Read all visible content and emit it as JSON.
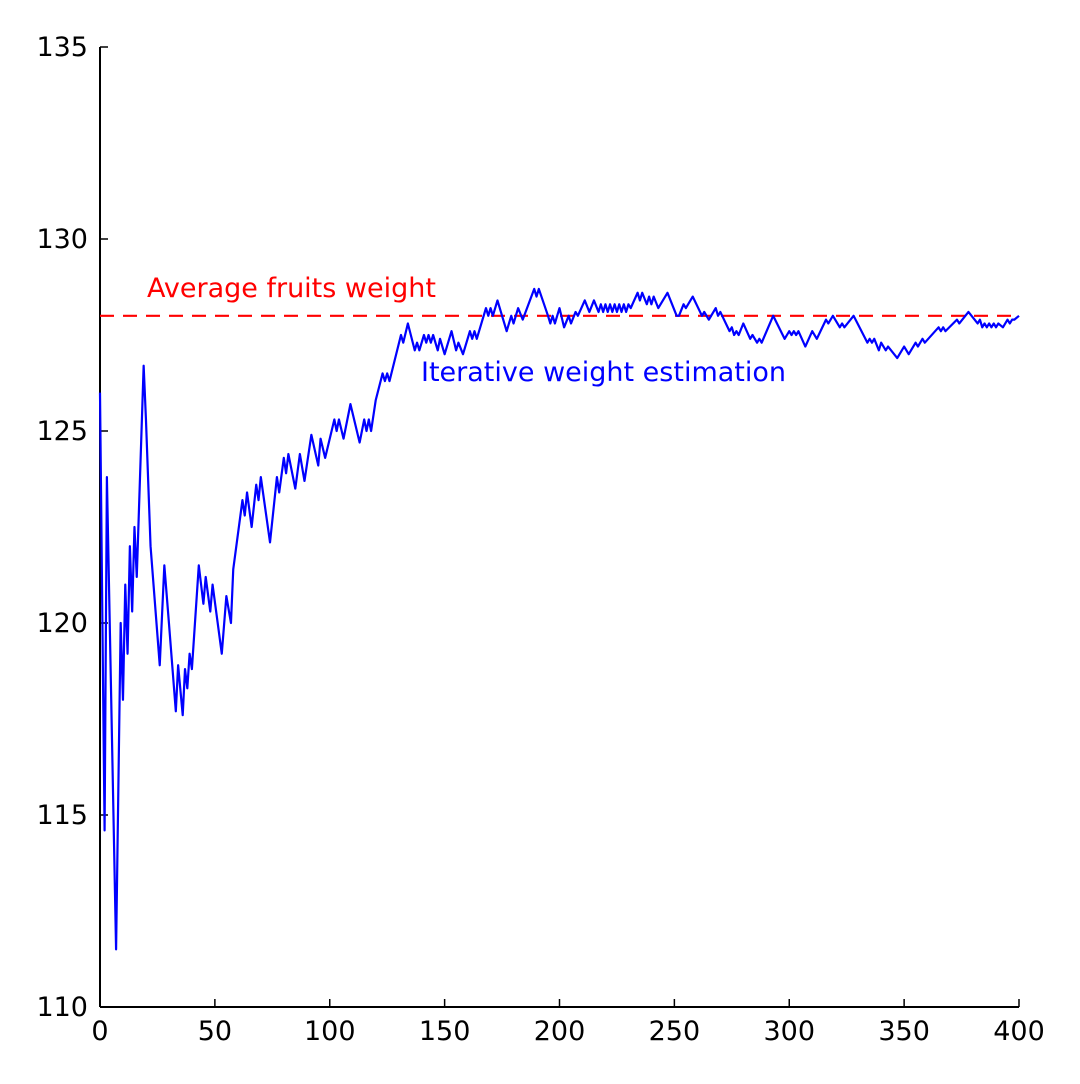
{
  "chart_data": {
    "type": "line",
    "x": [
      0,
      2,
      3,
      7,
      9,
      10,
      11,
      12,
      13,
      14,
      15,
      16,
      19,
      20,
      22,
      26,
      28,
      30,
      33,
      34,
      36,
      37,
      38,
      39,
      40,
      43,
      45,
      46,
      48,
      49,
      53,
      55,
      57,
      58,
      62,
      63,
      64,
      66,
      68,
      69,
      70,
      74,
      77,
      78,
      80,
      81,
      82,
      85,
      87,
      89,
      92,
      95,
      96,
      98,
      102,
      103,
      104,
      106,
      109,
      113,
      115,
      116,
      117,
      118,
      120,
      123,
      124,
      125,
      126,
      131,
      132,
      134,
      137,
      138,
      139,
      141,
      142,
      143,
      144,
      145,
      147,
      148,
      150,
      153,
      155,
      156,
      158,
      161,
      162,
      163,
      164,
      168,
      169,
      170,
      171,
      173,
      177,
      179,
      180,
      182,
      184,
      189,
      190,
      191,
      195,
      196,
      197,
      198,
      200,
      202,
      204,
      205,
      207,
      208,
      211,
      213,
      215,
      217,
      218,
      219,
      220,
      221,
      222,
      223,
      224,
      225,
      226,
      227,
      228,
      229,
      230,
      231,
      234,
      235,
      236,
      238,
      239,
      240,
      241,
      243,
      247,
      251,
      252,
      254,
      255,
      258,
      262,
      263,
      265,
      268,
      269,
      270,
      274,
      275,
      276,
      277,
      278,
      280,
      283,
      284,
      286,
      287,
      288,
      293,
      298,
      300,
      301,
      302,
      303,
      304,
      307,
      310,
      312,
      316,
      317,
      319,
      322,
      323,
      324,
      328,
      334,
      335,
      336,
      337,
      339,
      340,
      342,
      343,
      347,
      350,
      352,
      355,
      356,
      358,
      359,
      365,
      366,
      367,
      368,
      373,
      374,
      378,
      382,
      383,
      384,
      385,
      386,
      387,
      388,
      389,
      390,
      391,
      393,
      395,
      396,
      397,
      398,
      400
    ],
    "series": [
      {
        "name": "Iterative weight estimation",
        "color": "#0000ff",
        "values": [
          126,
          114.6,
          123.8,
          111.5,
          120,
          118,
          121,
          119.2,
          122,
          120.3,
          122.5,
          121.2,
          126.7,
          125.3,
          122,
          118.9,
          121.5,
          120,
          117.7,
          118.9,
          117.6,
          118.8,
          118.3,
          119.2,
          118.8,
          121.5,
          120.5,
          121.2,
          120.3,
          121,
          119.2,
          120.7,
          120,
          121.4,
          123.2,
          122.8,
          123.4,
          122.5,
          123.6,
          123.2,
          123.8,
          122.1,
          123.8,
          123.4,
          124.3,
          123.9,
          124.4,
          123.5,
          124.4,
          123.7,
          124.9,
          124.1,
          124.8,
          124.3,
          125.3,
          125,
          125.3,
          124.8,
          125.7,
          124.7,
          125.3,
          125,
          125.3,
          125,
          125.8,
          126.5,
          126.3,
          126.5,
          126.3,
          127.5,
          127.3,
          127.8,
          127.1,
          127.3,
          127.1,
          127.5,
          127.3,
          127.5,
          127.3,
          127.5,
          127.1,
          127.4,
          127,
          127.6,
          127.1,
          127.3,
          127,
          127.6,
          127.4,
          127.6,
          127.4,
          128.2,
          128,
          128.2,
          128,
          128.4,
          127.6,
          128,
          127.8,
          128.2,
          127.9,
          128.7,
          128.5,
          128.7,
          128,
          127.8,
          128,
          127.8,
          128.2,
          127.7,
          128,
          127.8,
          128.1,
          128,
          128.4,
          128.1,
          128.4,
          128.1,
          128.3,
          128.1,
          128.3,
          128.1,
          128.3,
          128.1,
          128.3,
          128.1,
          128.3,
          128.1,
          128.3,
          128.1,
          128.3,
          128.2,
          128.6,
          128.4,
          128.6,
          128.3,
          128.5,
          128.3,
          128.5,
          128.2,
          128.6,
          128,
          128,
          128.3,
          128.2,
          128.5,
          128,
          128.1,
          127.9,
          128.2,
          128,
          128.1,
          127.6,
          127.7,
          127.5,
          127.6,
          127.5,
          127.8,
          127.4,
          127.5,
          127.3,
          127.4,
          127.3,
          128,
          127.4,
          127.6,
          127.5,
          127.6,
          127.5,
          127.6,
          127.2,
          127.6,
          127.4,
          127.9,
          127.8,
          128,
          127.7,
          127.8,
          127.7,
          128,
          127.3,
          127.4,
          127.3,
          127.4,
          127.1,
          127.3,
          127.1,
          127.2,
          126.9,
          127.2,
          127,
          127.3,
          127.2,
          127.4,
          127.3,
          127.7,
          127.6,
          127.7,
          127.6,
          127.9,
          127.8,
          128.1,
          127.8,
          127.9,
          127.7,
          127.8,
          127.7,
          127.8,
          127.7,
          127.8,
          127.7,
          127.8,
          127.7,
          127.9,
          127.8,
          127.9,
          127.9,
          128
        ]
      }
    ],
    "hline": {
      "value": 128,
      "color": "#ff0000",
      "label": "Average fruits weight"
    },
    "xlim": [
      0,
      400
    ],
    "xticks": [
      0,
      50,
      100,
      150,
      200,
      250,
      300,
      350,
      400
    ],
    "ylim": [
      110,
      135
    ],
    "yticks": [
      110,
      115,
      120,
      125,
      130,
      135
    ]
  }
}
